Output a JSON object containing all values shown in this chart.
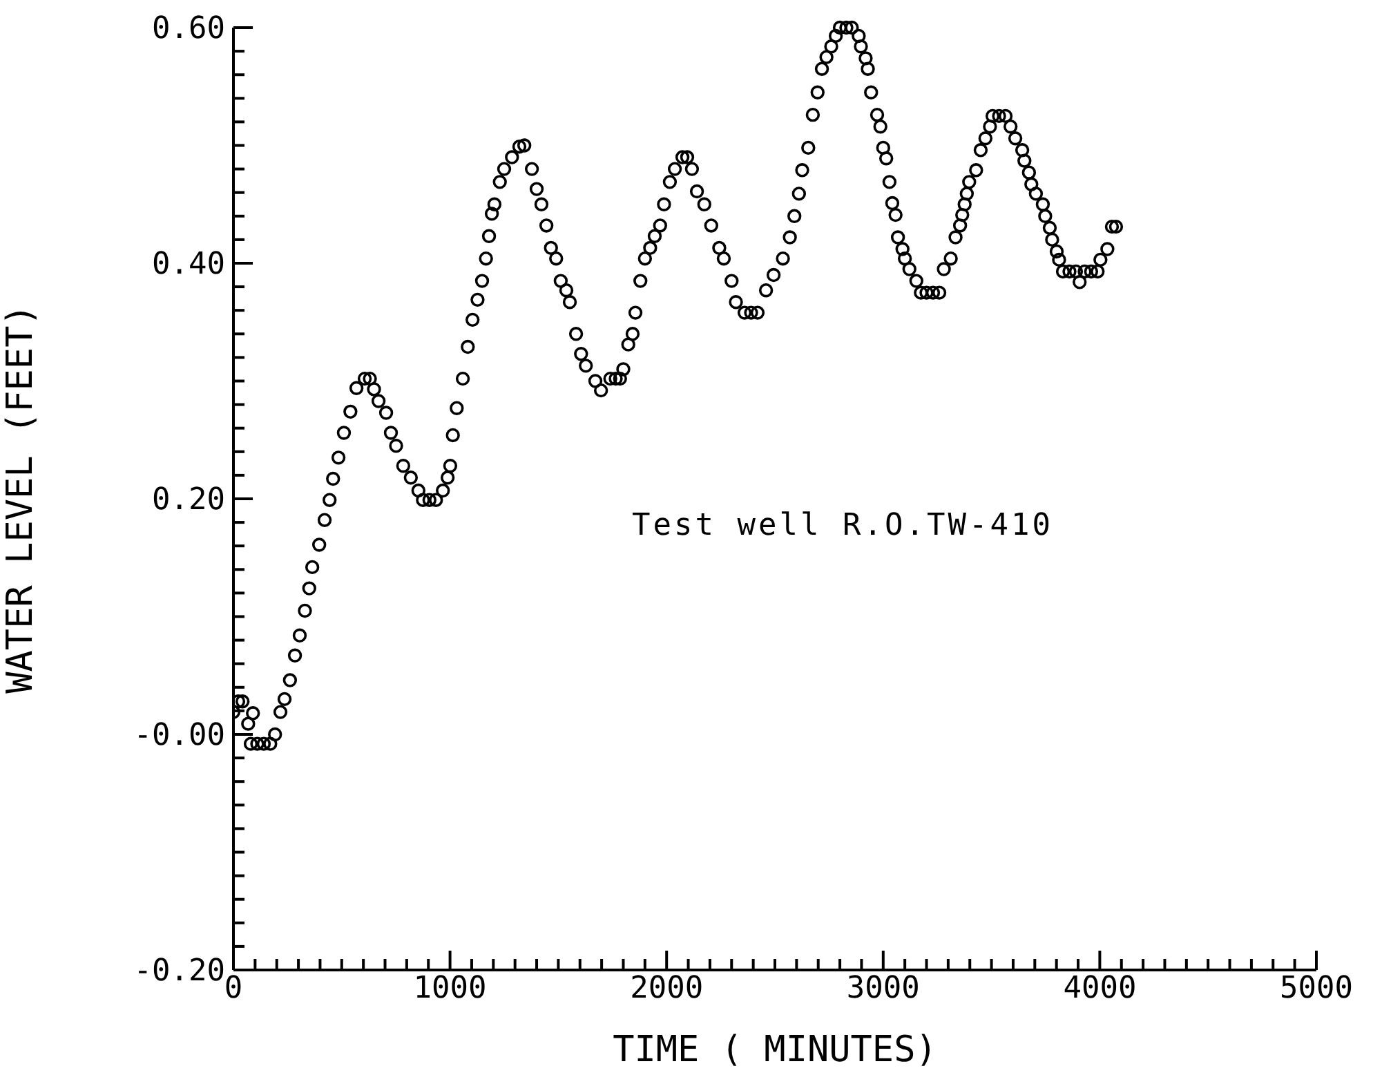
{
  "chart_data": {
    "type": "scatter",
    "xlabel": "TIME ( MINUTES)",
    "ylabel": "WATER LEVEL (FEET)",
    "annotations": [
      "Test well R.O.TW-410"
    ],
    "marker": "circle",
    "color": "#000000",
    "x": [
      0,
      22,
      42,
      68,
      80,
      90,
      110,
      140,
      170,
      192,
      217,
      236,
      261,
      284,
      306,
      330,
      350,
      364,
      396,
      421,
      444,
      460,
      485,
      510,
      540,
      568,
      606,
      630,
      649,
      670,
      705,
      727,
      751,
      784,
      819,
      854,
      875,
      905,
      935,
      967,
      989,
      1001,
      1013,
      1031,
      1059,
      1082,
      1104,
      1127,
      1148,
      1166,
      1180,
      1193,
      1205,
      1230,
      1250,
      1286,
      1320,
      1343,
      1378,
      1400,
      1422,
      1445,
      1466,
      1490,
      1511,
      1537,
      1553,
      1582,
      1605,
      1627,
      1671,
      1697,
      1740,
      1765,
      1785,
      1800,
      1823,
      1843,
      1856,
      1879,
      1900,
      1924,
      1945,
      1970,
      1988,
      2015,
      2038,
      2073,
      2095,
      2117,
      2140,
      2174,
      2206,
      2243,
      2264,
      2300,
      2320,
      2360,
      2390,
      2420,
      2459,
      2494,
      2537,
      2569,
      2590,
      2611,
      2626,
      2654,
      2675,
      2697,
      2717,
      2738,
      2760,
      2781,
      2800,
      2830,
      2855,
      2887,
      2897,
      2919,
      2929,
      2944,
      2972,
      2987,
      3000,
      3014,
      3029,
      3042,
      3057,
      3068,
      3089,
      3100,
      3121,
      3153,
      3174,
      3200,
      3230,
      3259,
      3280,
      3312,
      3334,
      3355,
      3365,
      3376,
      3386,
      3397,
      3429,
      3450,
      3472,
      3493,
      3505,
      3535,
      3565,
      3588,
      3610,
      3642,
      3652,
      3673,
      3684,
      3705,
      3737,
      3748,
      3769,
      3780,
      3801,
      3812,
      3830,
      3860,
      3890,
      3907,
      3930,
      3960,
      3990,
      4003,
      4035,
      4056,
      4075
    ],
    "values": [
      0.019,
      0.028,
      0.028,
      0.009,
      -0.008,
      0.018,
      -0.008,
      -0.008,
      -0.008,
      0,
      0.019,
      0.03,
      0.046,
      0.067,
      0.084,
      0.105,
      0.124,
      0.142,
      0.161,
      0.182,
      0.199,
      0.217,
      0.235,
      0.256,
      0.274,
      0.294,
      0.302,
      0.302,
      0.293,
      0.283,
      0.273,
      0.256,
      0.245,
      0.228,
      0.218,
      0.207,
      0.199,
      0.199,
      0.199,
      0.207,
      0.218,
      0.228,
      0.254,
      0.277,
      0.302,
      0.329,
      0.352,
      0.369,
      0.385,
      0.404,
      0.423,
      0.442,
      0.45,
      0.469,
      0.48,
      0.49,
      0.499,
      0.5,
      0.48,
      0.463,
      0.45,
      0.432,
      0.413,
      0.404,
      0.385,
      0.377,
      0.367,
      0.34,
      0.323,
      0.313,
      0.3,
      0.292,
      0.302,
      0.302,
      0.302,
      0.31,
      0.331,
      0.34,
      0.358,
      0.385,
      0.404,
      0.413,
      0.423,
      0.432,
      0.45,
      0.469,
      0.48,
      0.49,
      0.49,
      0.48,
      0.461,
      0.45,
      0.432,
      0.413,
      0.404,
      0.385,
      0.367,
      0.358,
      0.358,
      0.358,
      0.377,
      0.39,
      0.404,
      0.422,
      0.44,
      0.459,
      0.479,
      0.498,
      0.526,
      0.545,
      0.565,
      0.575,
      0.584,
      0.593,
      0.6,
      0.6,
      0.6,
      0.593,
      0.584,
      0.574,
      0.565,
      0.545,
      0.526,
      0.516,
      0.498,
      0.489,
      0.469,
      0.451,
      0.441,
      0.422,
      0.412,
      0.404,
      0.395,
      0.385,
      0.375,
      0.375,
      0.375,
      0.375,
      0.395,
      0.404,
      0.422,
      0.432,
      0.441,
      0.45,
      0.459,
      0.469,
      0.479,
      0.496,
      0.506,
      0.516,
      0.525,
      0.525,
      0.525,
      0.516,
      0.506,
      0.496,
      0.487,
      0.477,
      0.467,
      0.459,
      0.45,
      0.44,
      0.43,
      0.42,
      0.41,
      0.403,
      0.393,
      0.393,
      0.393,
      0.384,
      0.393,
      0.393,
      0.393,
      0.403,
      0.412,
      0.431,
      0.431
    ],
    "xlim": [
      0,
      5000
    ],
    "xticks": [
      0,
      {
        "value": 100,
        "label": null
      },
      {
        "value": 200,
        "label": null
      },
      {
        "value": 300,
        "label": null
      },
      {
        "value": 400,
        "label": null
      },
      {
        "value": 500,
        "label": null
      },
      {
        "value": 600,
        "label": null
      },
      {
        "value": 700,
        "label": null
      },
      {
        "value": 800,
        "label": null
      },
      {
        "value": 900,
        "label": null
      },
      1000,
      {
        "value": 1100,
        "label": null
      },
      {
        "value": 1200,
        "label": null
      },
      {
        "value": 1300,
        "label": null
      },
      {
        "value": 1400,
        "label": null
      },
      {
        "value": 1500,
        "label": null
      },
      {
        "value": 1600,
        "label": null
      },
      {
        "value": 1700,
        "label": null
      },
      {
        "value": 1800,
        "label": null
      },
      {
        "value": 1900,
        "label": null
      },
      2000,
      {
        "value": 2100,
        "label": null
      },
      {
        "value": 2200,
        "label": null
      },
      {
        "value": 2300,
        "label": null
      },
      {
        "value": 2400,
        "label": null
      },
      {
        "value": 2500,
        "label": null
      },
      {
        "value": 2600,
        "label": null
      },
      {
        "value": 2700,
        "label": null
      },
      {
        "value": 2800,
        "label": null
      },
      {
        "value": 2900,
        "label": null
      },
      3000,
      {
        "value": 3100,
        "label": null
      },
      {
        "value": 3200,
        "label": null
      },
      {
        "value": 3300,
        "label": null
      },
      {
        "value": 3400,
        "label": null
      },
      {
        "value": 3500,
        "label": null
      },
      {
        "value": 3600,
        "label": null
      },
      {
        "value": 3700,
        "label": null
      },
      {
        "value": 3800,
        "label": null
      },
      {
        "value": 3900,
        "label": null
      },
      4000,
      {
        "value": 4100,
        "label": null
      },
      {
        "value": 4200,
        "label": null
      },
      {
        "value": 4300,
        "label": null
      },
      {
        "value": 4400,
        "label": null
      },
      {
        "value": 4500,
        "label": null
      },
      {
        "value": 4600,
        "label": null
      },
      {
        "value": 4700,
        "label": null
      },
      {
        "value": 4800,
        "label": null
      },
      {
        "value": 4900,
        "label": null
      },
      5000
    ],
    "ylim": [
      -0.2,
      0.6
    ],
    "yticks": [
      {
        "value": -0.2,
        "label": "-0.20"
      },
      {
        "value": -0.18,
        "label": null
      },
      {
        "value": -0.16,
        "label": null
      },
      {
        "value": -0.14,
        "label": null
      },
      {
        "value": -0.12,
        "label": null
      },
      {
        "value": -0.1,
        "label": null
      },
      {
        "value": -0.08,
        "label": null
      },
      {
        "value": -0.06,
        "label": null
      },
      {
        "value": -0.04,
        "label": null
      },
      {
        "value": -0.02,
        "label": null
      },
      {
        "value": 0,
        "label": "-0.00"
      },
      {
        "value": 0.02,
        "label": null
      },
      {
        "value": 0.04,
        "label": null
      },
      {
        "value": 0.06,
        "label": null
      },
      {
        "value": 0.08,
        "label": null
      },
      {
        "value": 0.1,
        "label": null
      },
      {
        "value": 0.12,
        "label": null
      },
      {
        "value": 0.14,
        "label": null
      },
      {
        "value": 0.16,
        "label": null
      },
      {
        "value": 0.18,
        "label": null
      },
      {
        "value": 0.2,
        "label": "0.20"
      },
      {
        "value": 0.22,
        "label": null
      },
      {
        "value": 0.24,
        "label": null
      },
      {
        "value": 0.26,
        "label": null
      },
      {
        "value": 0.28,
        "label": null
      },
      {
        "value": 0.3,
        "label": null
      },
      {
        "value": 0.32,
        "label": null
      },
      {
        "value": 0.34,
        "label": null
      },
      {
        "value": 0.36,
        "label": null
      },
      {
        "value": 0.38,
        "label": null
      },
      {
        "value": 0.4,
        "label": "0.40"
      },
      {
        "value": 0.42,
        "label": null
      },
      {
        "value": 0.44,
        "label": null
      },
      {
        "value": 0.46,
        "label": null
      },
      {
        "value": 0.48,
        "label": null
      },
      {
        "value": 0.5,
        "label": null
      },
      {
        "value": 0.52,
        "label": null
      },
      {
        "value": 0.54,
        "label": null
      },
      {
        "value": 0.56,
        "label": null
      },
      {
        "value": 0.58,
        "label": null
      },
      {
        "value": 0.6,
        "label": "0.60"
      }
    ]
  }
}
